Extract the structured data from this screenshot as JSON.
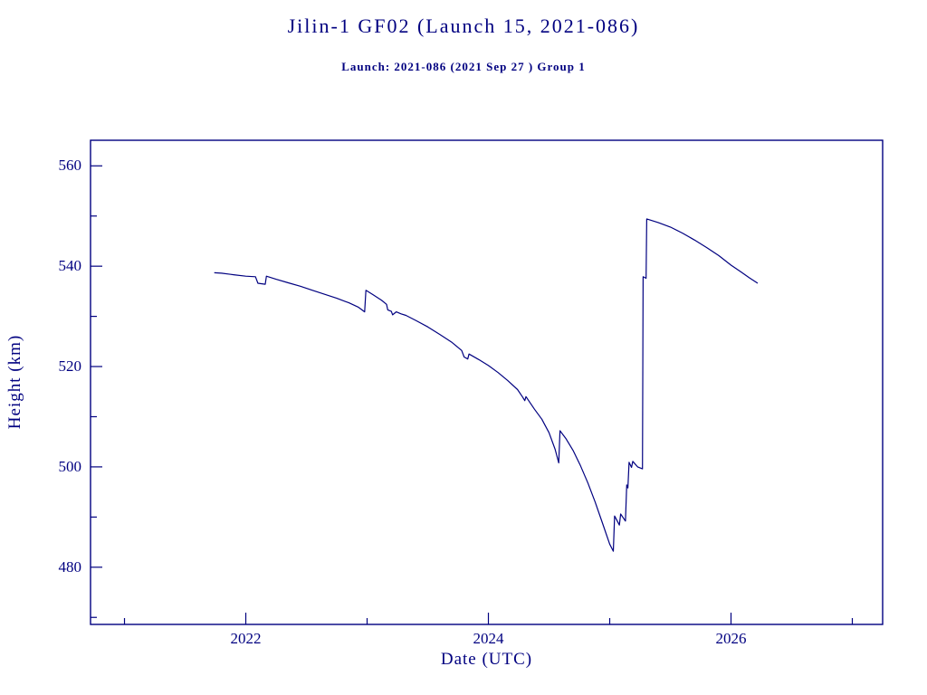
{
  "chart_data": {
    "type": "line",
    "title": "Jilin-1 GF02 (Launch 15, 2021-086)",
    "subtitle": "Launch: 2021-086  (2021 Sep 27 )  Group 1",
    "xlabel": "Date (UTC)",
    "ylabel": "Height (km)",
    "xlim": [
      2020.72,
      2027.25
    ],
    "ylim": [
      468.6,
      565.1
    ],
    "x_major_ticks": [
      2022,
      2024,
      2026
    ],
    "x_minor_ticks": [
      2021,
      2023,
      2025,
      2027
    ],
    "y_major_ticks": [
      480,
      500,
      520,
      540,
      560
    ],
    "y_minor_ticks": [
      470,
      490,
      510,
      530,
      550
    ],
    "line_color": "#000080",
    "background_color": "#ffffff",
    "legend": "none",
    "grid": false,
    "series_name": "Height (km) vs Date (UTC)",
    "points": [
      [
        2021.74,
        538.7
      ],
      [
        2021.8,
        538.6
      ],
      [
        2021.9,
        538.3
      ],
      [
        2022.0,
        538.0
      ],
      [
        2022.08,
        537.9
      ],
      [
        2022.1,
        536.6
      ],
      [
        2022.16,
        536.4
      ],
      [
        2022.17,
        538.0
      ],
      [
        2022.25,
        537.4
      ],
      [
        2022.35,
        536.7
      ],
      [
        2022.45,
        536.0
      ],
      [
        2022.55,
        535.2
      ],
      [
        2022.65,
        534.4
      ],
      [
        2022.75,
        533.6
      ],
      [
        2022.85,
        532.7
      ],
      [
        2022.93,
        531.8
      ],
      [
        2022.98,
        530.9
      ],
      [
        2022.99,
        535.2
      ],
      [
        2023.05,
        534.3
      ],
      [
        2023.12,
        533.2
      ],
      [
        2023.16,
        532.4
      ],
      [
        2023.17,
        531.3
      ],
      [
        2023.2,
        531.0
      ],
      [
        2023.21,
        530.3
      ],
      [
        2023.24,
        530.9
      ],
      [
        2023.28,
        530.5
      ],
      [
        2023.32,
        530.2
      ],
      [
        2023.4,
        529.2
      ],
      [
        2023.5,
        527.9
      ],
      [
        2023.6,
        526.4
      ],
      [
        2023.7,
        524.8
      ],
      [
        2023.78,
        523.2
      ],
      [
        2023.8,
        521.9
      ],
      [
        2023.83,
        521.5
      ],
      [
        2023.84,
        522.5
      ],
      [
        2023.92,
        521.4
      ],
      [
        2024.0,
        520.2
      ],
      [
        2024.08,
        518.8
      ],
      [
        2024.16,
        517.2
      ],
      [
        2024.24,
        515.4
      ],
      [
        2024.28,
        514.0
      ],
      [
        2024.3,
        513.2
      ],
      [
        2024.31,
        514.0
      ],
      [
        2024.38,
        511.5
      ],
      [
        2024.44,
        509.5
      ],
      [
        2024.5,
        506.8
      ],
      [
        2024.55,
        503.5
      ],
      [
        2024.58,
        500.8
      ],
      [
        2024.59,
        507.2
      ],
      [
        2024.64,
        505.6
      ],
      [
        2024.7,
        503.2
      ],
      [
        2024.76,
        500.2
      ],
      [
        2024.82,
        496.8
      ],
      [
        2024.88,
        493.0
      ],
      [
        2024.94,
        488.8
      ],
      [
        2025.0,
        484.6
      ],
      [
        2025.03,
        483.2
      ],
      [
        2025.04,
        490.2
      ],
      [
        2025.08,
        488.4
      ],
      [
        2025.09,
        490.6
      ],
      [
        2025.13,
        489.2
      ],
      [
        2025.14,
        496.4
      ],
      [
        2025.15,
        495.8
      ],
      [
        2025.16,
        500.9
      ],
      [
        2025.18,
        499.9
      ],
      [
        2025.19,
        501.1
      ],
      [
        2025.23,
        500.0
      ],
      [
        2025.27,
        499.6
      ],
      [
        2025.275,
        537.9
      ],
      [
        2025.3,
        537.6
      ],
      [
        2025.305,
        549.4
      ],
      [
        2025.32,
        549.3
      ],
      [
        2025.4,
        548.7
      ],
      [
        2025.5,
        547.8
      ],
      [
        2025.6,
        546.6
      ],
      [
        2025.7,
        545.2
      ],
      [
        2025.8,
        543.7
      ],
      [
        2025.9,
        542.1
      ],
      [
        2026.0,
        540.2
      ],
      [
        2026.08,
        538.9
      ],
      [
        2026.15,
        537.7
      ],
      [
        2026.22,
        536.6
      ]
    ]
  }
}
